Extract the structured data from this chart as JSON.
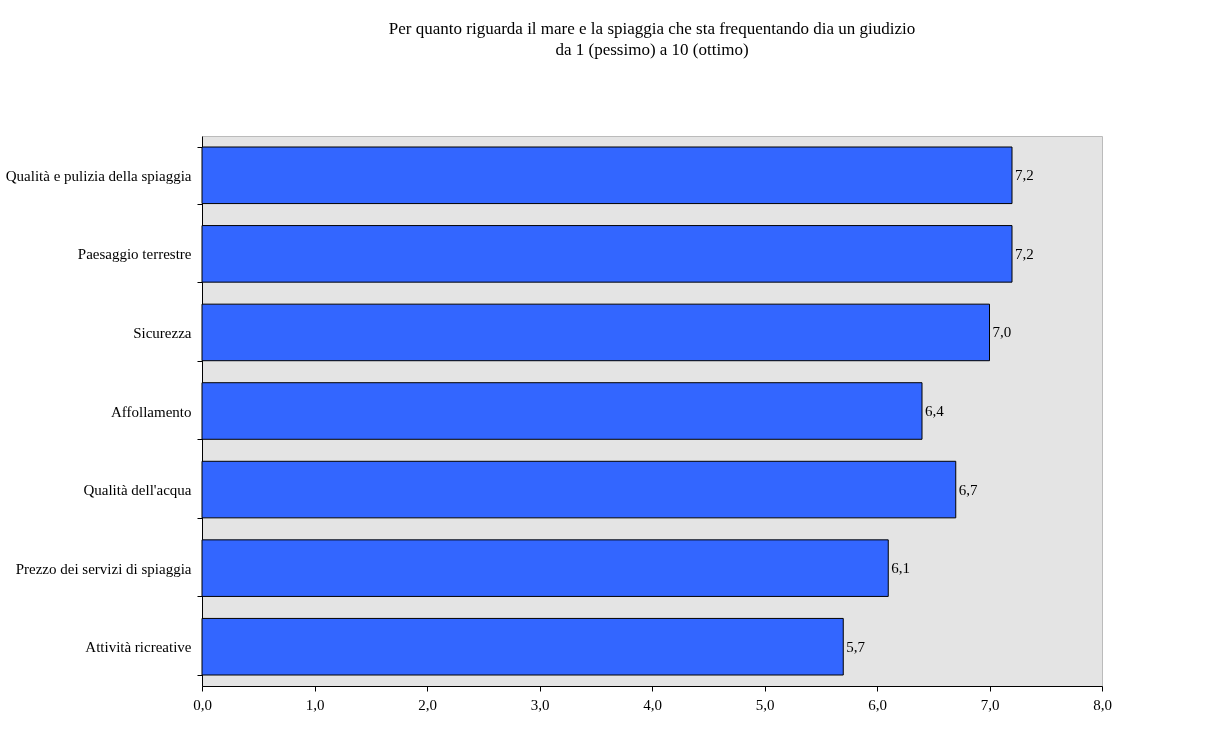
{
  "chart_data": {
    "type": "bar",
    "orientation": "horizontal",
    "title": "Per quanto riguarda il mare e la spiaggia che sta frequentando dia un giudizio",
    "subtitle": "da 1 (pessimo) a 10 (ottimo)",
    "categories": [
      "Qualità e pulizia della spiaggia",
      "Paesaggio terrestre",
      "Sicurezza",
      "Affollamento",
      "Qualità dell'acqua",
      "Prezzo dei servizi di spiaggia",
      "Attività ricreative"
    ],
    "values": [
      7.2,
      7.2,
      7.0,
      6.4,
      6.7,
      6.1,
      5.7
    ],
    "value_labels": [
      "7,2",
      "7,2",
      "7,0",
      "6,4",
      "6,7",
      "6,1",
      "5,7"
    ],
    "color": "#3366ff",
    "xlim": [
      0,
      8
    ],
    "xticks": [
      {
        "value": 0,
        "label": "0,0"
      },
      {
        "value": 1,
        "label": "1,0"
      },
      {
        "value": 2,
        "label": "2,0"
      },
      {
        "value": 3,
        "label": "3,0"
      },
      {
        "value": 4,
        "label": "4,0"
      },
      {
        "value": 5,
        "label": "5,0"
      },
      {
        "value": 6,
        "label": "6,0"
      },
      {
        "value": 7,
        "label": "7,0"
      },
      {
        "value": 8,
        "label": "8,0"
      }
    ],
    "grid": false
  }
}
